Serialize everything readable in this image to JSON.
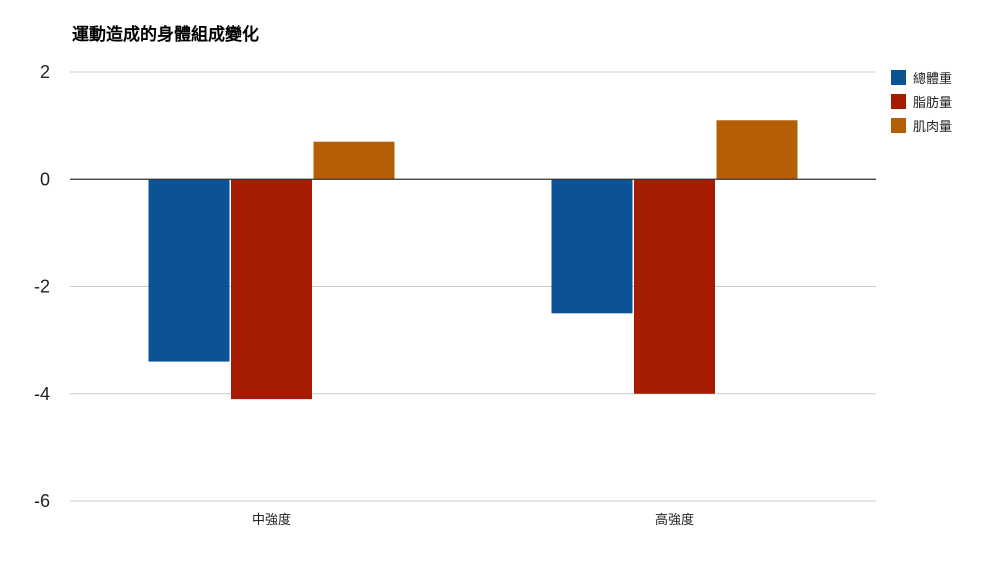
{
  "chart_data": {
    "type": "bar",
    "title": "運動造成的身體組成變化",
    "categories": [
      "中強度",
      "高強度"
    ],
    "series": [
      {
        "name": "總體重",
        "values": [
          -3.4,
          -2.5
        ],
        "color": "#0b5394"
      },
      {
        "name": "脂肪量",
        "values": [
          -4.1,
          -4.0
        ],
        "color": "#a61c00"
      },
      {
        "name": "肌肉量",
        "values": [
          0.7,
          1.1
        ],
        "color": "#b45f06"
      }
    ],
    "ylim": [
      -6,
      2
    ],
    "yticks": [
      2,
      0,
      -2,
      -4,
      -6
    ],
    "grid": true,
    "legend_position": "right"
  }
}
